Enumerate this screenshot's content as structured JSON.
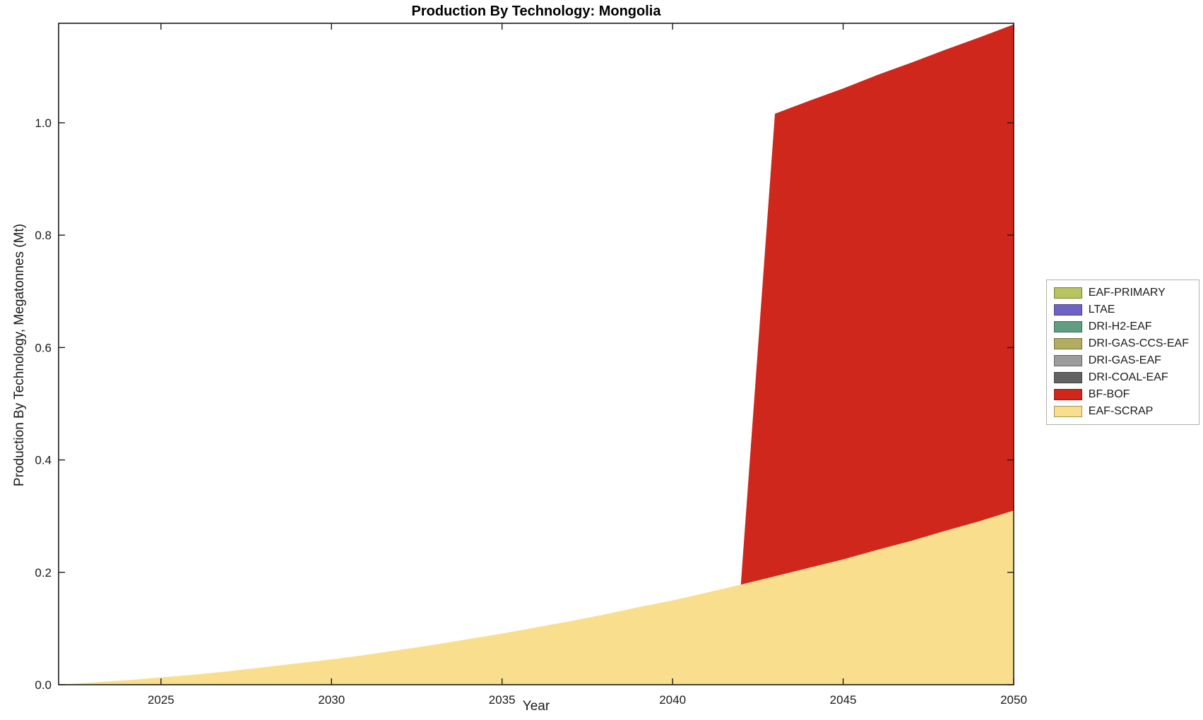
{
  "chart_data": {
    "type": "area",
    "stacked": true,
    "title": "Production By Technology: Mongolia",
    "xlabel": "Year",
    "ylabel": "Production By Technology, Megatonnes (Mt)",
    "xlim": [
      2022,
      2050
    ],
    "ylim": [
      0,
      1.177
    ],
    "grid": false,
    "legend_position": "right",
    "xticks": [
      2025,
      2030,
      2035,
      2040,
      2045,
      2050
    ],
    "xtick_labels": [
      "2025",
      "2030",
      "2035",
      "2040",
      "2045",
      "2050"
    ],
    "yticks": [
      0.0,
      0.2,
      0.4,
      0.6,
      0.8,
      1.0
    ],
    "ytick_labels": [
      "0.0",
      "0.2",
      "0.4",
      "0.6",
      "0.8",
      "1.0"
    ],
    "x": [
      2022,
      2023,
      2024,
      2025,
      2026,
      2027,
      2028,
      2029,
      2030,
      2031,
      2032,
      2033,
      2034,
      2035,
      2036,
      2037,
      2038,
      2039,
      2040,
      2041,
      2042,
      2043,
      2044,
      2045,
      2046,
      2047,
      2048,
      2049,
      2050
    ],
    "series": [
      {
        "name": "EAF-SCRAP",
        "color": "#f9df8d",
        "values": [
          0,
          0.004,
          0.008,
          0.013,
          0.018,
          0.024,
          0.031,
          0.038,
          0.045,
          0.053,
          0.062,
          0.071,
          0.081,
          0.091,
          0.102,
          0.113,
          0.125,
          0.138,
          0.15,
          0.164,
          0.178,
          0.193,
          0.208,
          0.223,
          0.24,
          0.256,
          0.274,
          0.291,
          0.31
        ]
      },
      {
        "name": "BF-BOF",
        "color": "#cf271c",
        "values": [
          0,
          0,
          0,
          0,
          0,
          0,
          0,
          0,
          0,
          0,
          0,
          0,
          0,
          0,
          0,
          0,
          0,
          0,
          0,
          0,
          0,
          0.823,
          0.831,
          0.838,
          0.845,
          0.851,
          0.856,
          0.861,
          0.865
        ]
      },
      {
        "name": "DRI-COAL-EAF",
        "color": "#636363",
        "values": [
          0,
          0,
          0,
          0,
          0,
          0,
          0,
          0,
          0,
          0,
          0,
          0,
          0,
          0,
          0,
          0,
          0,
          0,
          0,
          0,
          0,
          0,
          0,
          0,
          0,
          0,
          0,
          0,
          0
        ]
      },
      {
        "name": "DRI-GAS-EAF",
        "color": "#9c9c9c",
        "values": [
          0,
          0,
          0,
          0,
          0,
          0,
          0,
          0,
          0,
          0,
          0,
          0,
          0,
          0,
          0,
          0,
          0,
          0,
          0,
          0,
          0,
          0,
          0,
          0,
          0,
          0,
          0,
          0,
          0
        ]
      },
      {
        "name": "DRI-GAS-CCS-EAF",
        "color": "#b3ad62",
        "values": [
          0,
          0,
          0,
          0,
          0,
          0,
          0,
          0,
          0,
          0,
          0,
          0,
          0,
          0,
          0,
          0,
          0,
          0,
          0,
          0,
          0,
          0,
          0,
          0,
          0,
          0,
          0,
          0,
          0
        ]
      },
      {
        "name": "DRI-H2-EAF",
        "color": "#619d80",
        "values": [
          0,
          0,
          0,
          0,
          0,
          0,
          0,
          0,
          0,
          0,
          0,
          0,
          0,
          0,
          0,
          0,
          0,
          0,
          0,
          0,
          0,
          0,
          0,
          0,
          0,
          0,
          0,
          0,
          0
        ]
      },
      {
        "name": "LTAE",
        "color": "#6e63c4",
        "values": [
          0,
          0,
          0,
          0,
          0,
          0,
          0,
          0,
          0,
          0,
          0,
          0,
          0,
          0,
          0,
          0,
          0,
          0,
          0,
          0,
          0,
          0,
          0,
          0,
          0,
          0,
          0,
          0,
          0
        ]
      },
      {
        "name": "EAF-PRIMARY",
        "color": "#b8c45f",
        "values": [
          0,
          0,
          0,
          0,
          0,
          0,
          0,
          0,
          0,
          0,
          0,
          0,
          0,
          0,
          0,
          0,
          0,
          0,
          0,
          0,
          0,
          0,
          0,
          0,
          0,
          0,
          0,
          0,
          0
        ]
      }
    ],
    "legend_entries": [
      "EAF-PRIMARY",
      "LTAE",
      "DRI-H2-EAF",
      "DRI-GAS-CCS-EAF",
      "DRI-GAS-EAF",
      "DRI-COAL-EAF",
      "BF-BOF",
      "EAF-SCRAP"
    ],
    "axis_color": "#1a1a1a"
  }
}
